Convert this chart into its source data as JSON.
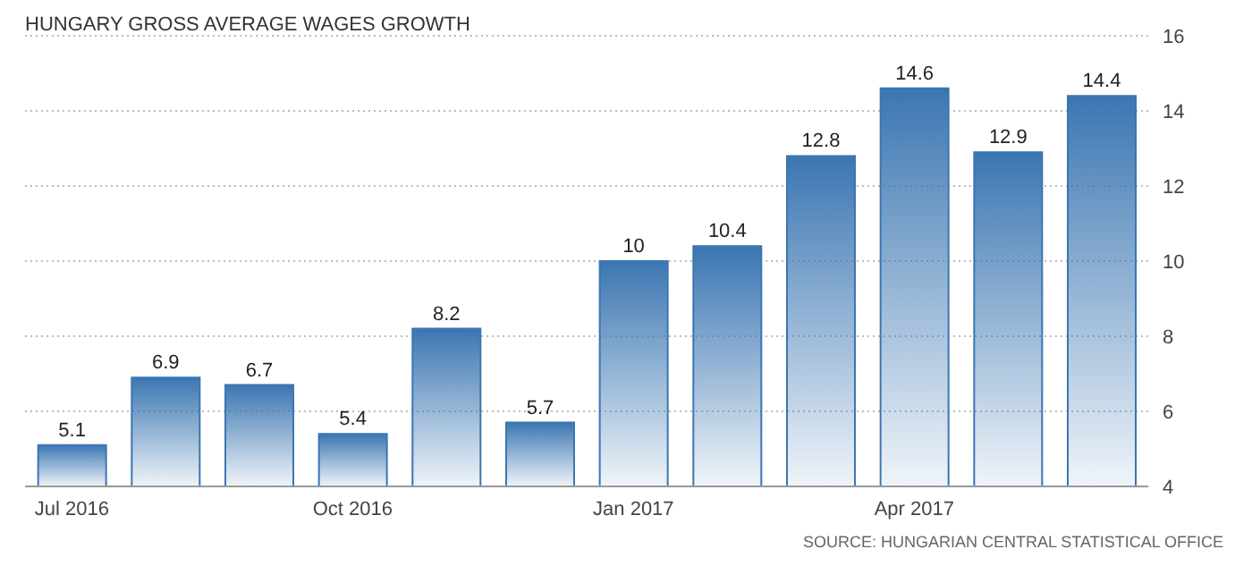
{
  "chart_data": {
    "type": "bar",
    "title": "HUNGARY GROSS AVERAGE WAGES GROWTH",
    "categories": [
      "Jul 2016",
      null,
      null,
      "Oct 2016",
      null,
      null,
      "Jan 2017",
      null,
      null,
      "Apr 2017",
      null,
      null
    ],
    "values": [
      5.1,
      6.9,
      6.7,
      5.4,
      8.2,
      5.7,
      10,
      10.4,
      12.8,
      14.6,
      12.9,
      14.4
    ],
    "color": "#3b76b2",
    "ylim": [
      4,
      16
    ],
    "yticks": [
      4,
      6,
      8,
      10,
      12,
      14,
      16
    ],
    "grid": "y",
    "data_labels": true,
    "annotations": [
      "SOURCE: HUNGARIAN CENTRAL STATISTICAL OFFICE"
    ]
  }
}
